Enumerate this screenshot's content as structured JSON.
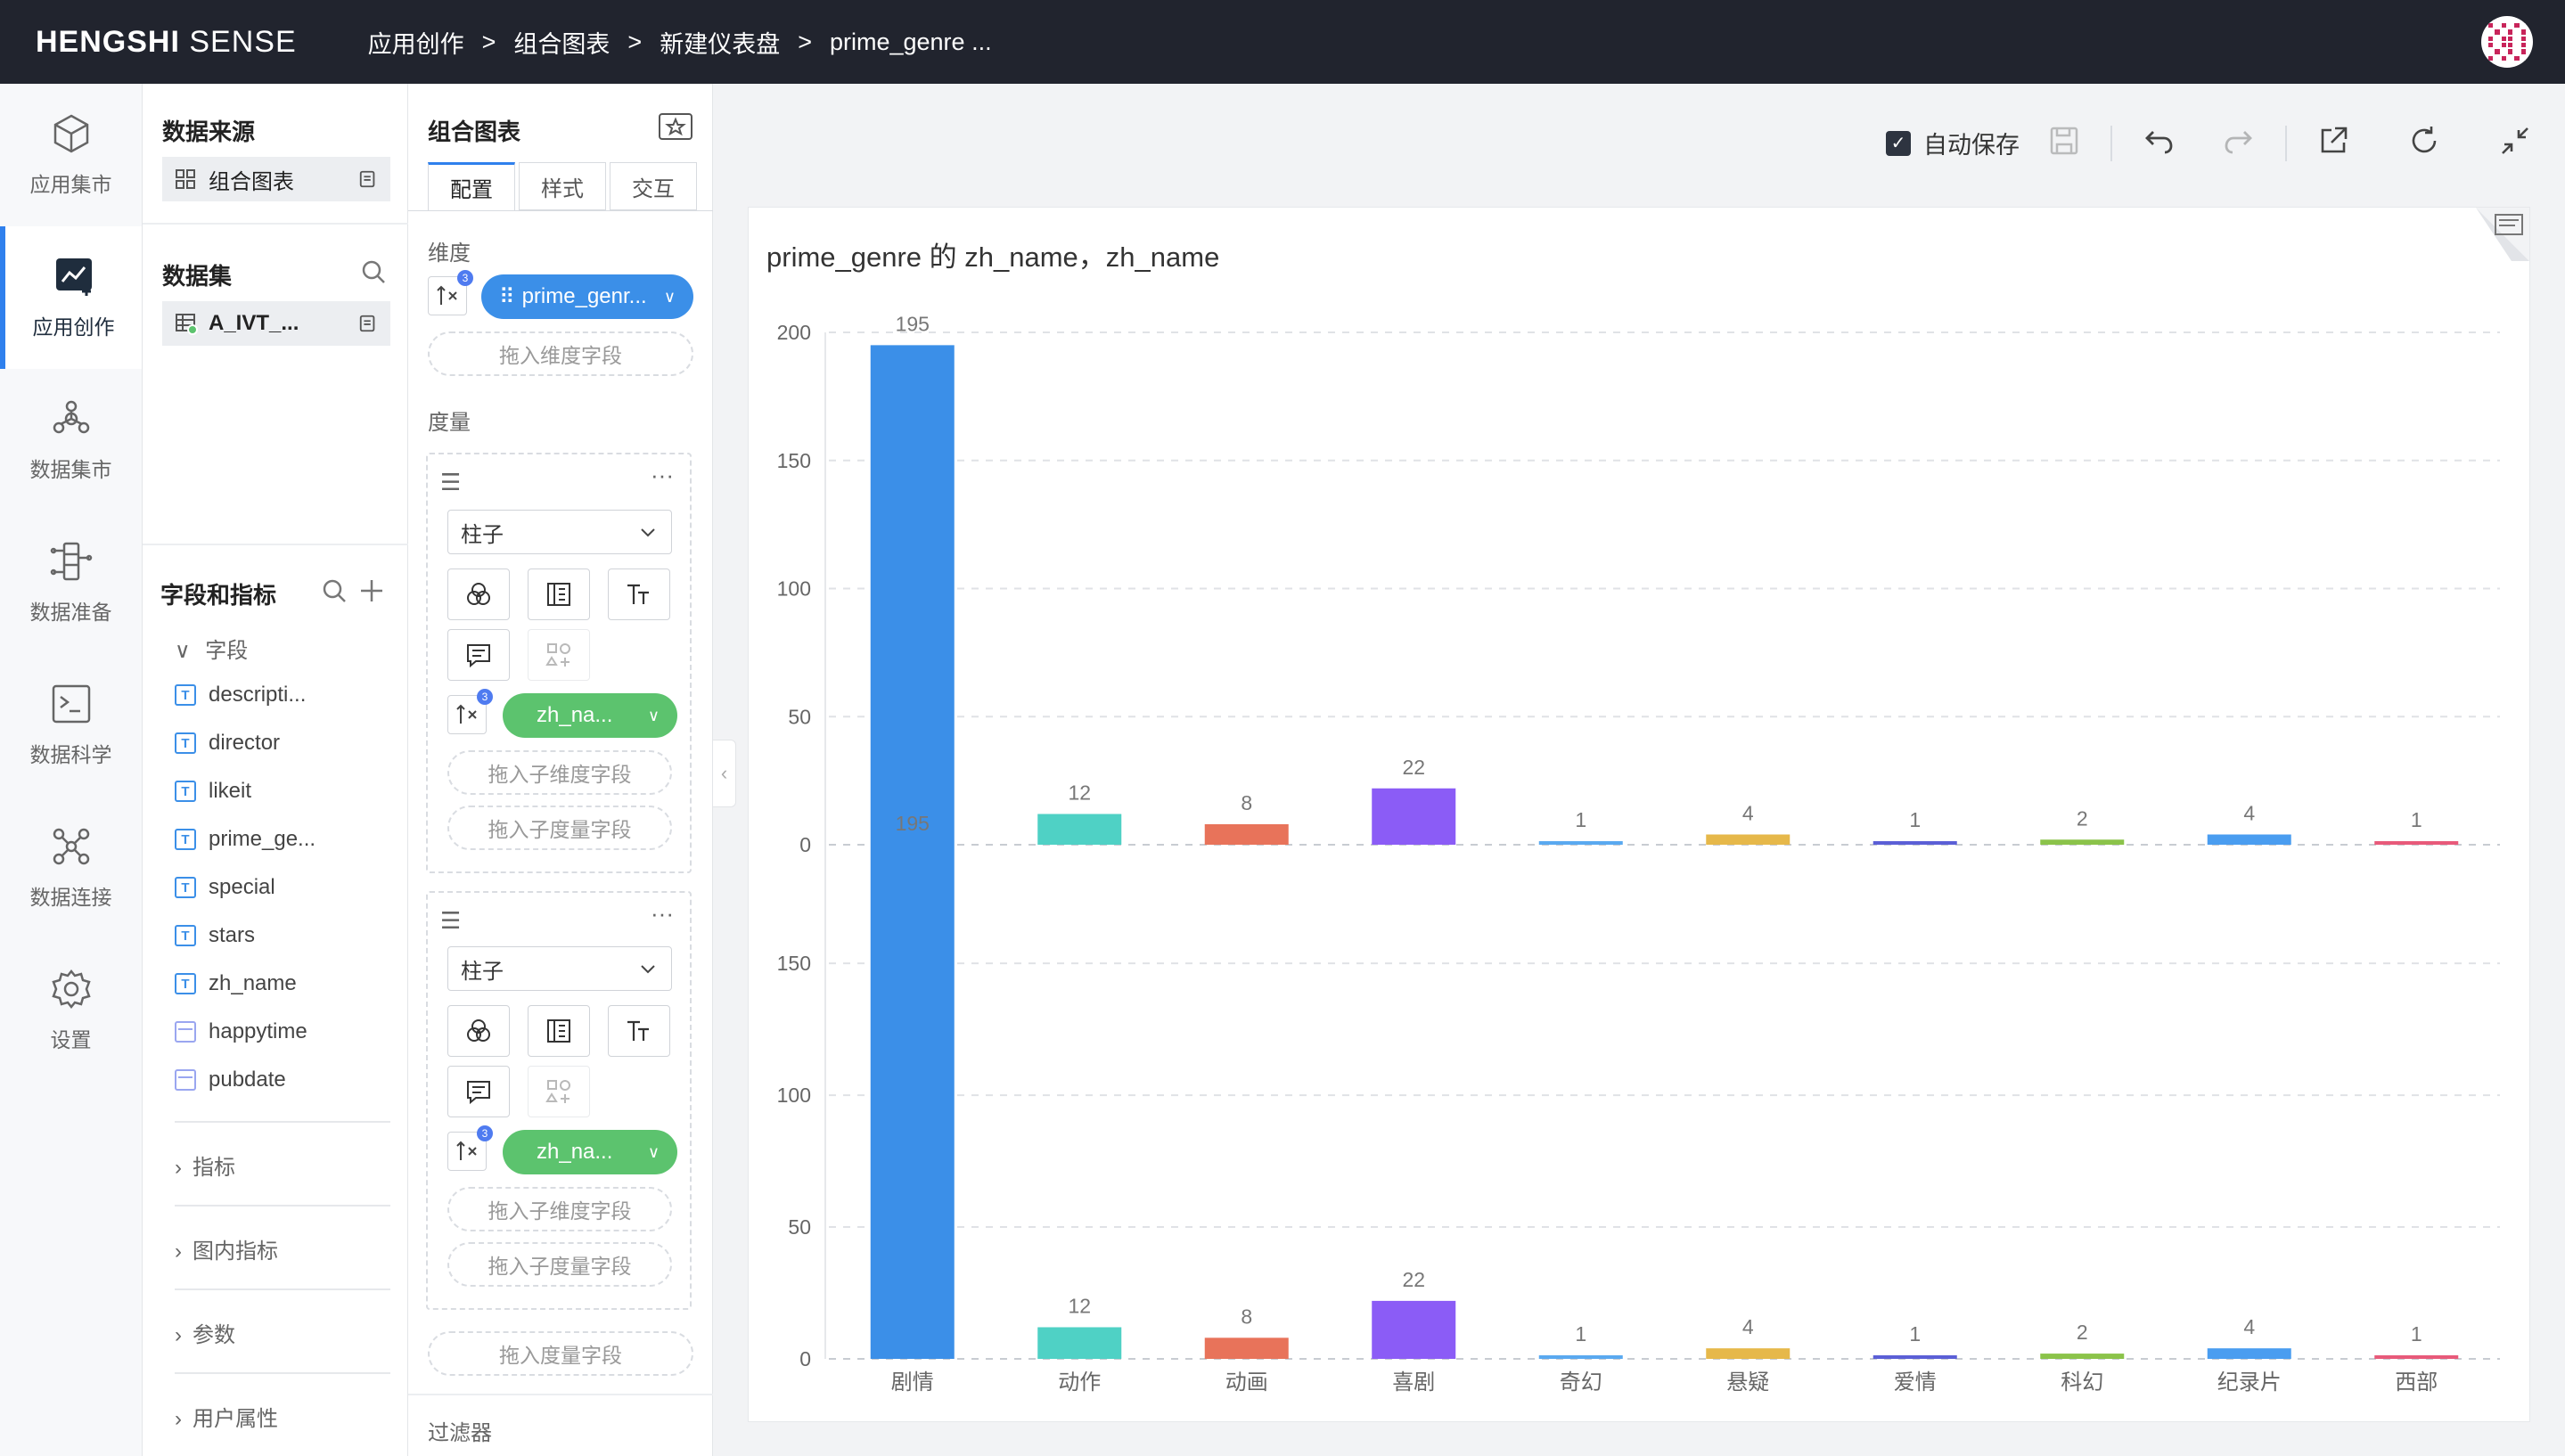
{
  "header": {
    "logo_bold": "HENGSHI",
    "logo_light": " SENSE",
    "breadcrumbs": [
      "应用创作",
      "组合图表",
      "新建仪表盘",
      "prime_genre ..."
    ],
    "separator": ">"
  },
  "leftnav": {
    "items": [
      {
        "label": "应用集市",
        "icon": "cube-icon",
        "active": false
      },
      {
        "label": "应用创作",
        "icon": "chart-create-icon",
        "active": true
      },
      {
        "label": "数据集市",
        "icon": "dataset-market-icon",
        "active": false
      },
      {
        "label": "数据准备",
        "icon": "data-prep-icon",
        "active": false
      },
      {
        "label": "数据科学",
        "icon": "terminal-icon",
        "active": false
      },
      {
        "label": "数据连接",
        "icon": "connect-icon",
        "active": false
      },
      {
        "label": "设置",
        "icon": "gear-icon",
        "active": false
      }
    ]
  },
  "datapanel": {
    "source_title": "数据来源",
    "source_name": "组合图表",
    "dataset_title": "数据集",
    "dataset_name": "A_IVT_...",
    "fields_title": "字段和指标",
    "fields_section": "字段",
    "fields": [
      {
        "name": "descripti...",
        "type": "text"
      },
      {
        "name": "director",
        "type": "text"
      },
      {
        "name": "likeit",
        "type": "text"
      },
      {
        "name": "prime_ge...",
        "type": "text"
      },
      {
        "name": "special",
        "type": "text"
      },
      {
        "name": "stars",
        "type": "text"
      },
      {
        "name": "zh_name",
        "type": "text"
      },
      {
        "name": "happytime",
        "type": "date"
      },
      {
        "name": "pubdate",
        "type": "date"
      }
    ],
    "collapsed_sections": [
      "指标",
      "图内指标",
      "参数",
      "用户属性"
    ]
  },
  "config": {
    "title": "组合图表",
    "tabs": [
      "配置",
      "样式",
      "交互"
    ],
    "dimension_label": "维度",
    "dimension_pill": "prime_genr...",
    "drop_dimension": "拖入维度字段",
    "measure_label": "度量",
    "measures": [
      {
        "chart_type": "柱子",
        "pill": "zh_na...",
        "drop_sub_dim": "拖入子维度字段",
        "drop_sub_measure": "拖入子度量字段"
      },
      {
        "chart_type": "柱子",
        "pill": "zh_na...",
        "drop_sub_dim": "拖入子维度字段",
        "drop_sub_measure": "拖入子度量字段"
      }
    ],
    "drop_measure": "拖入度量字段",
    "filter_label": "过滤器",
    "badge": "3"
  },
  "toolbar": {
    "autosave_label": "自动保存",
    "autosave_checked": true
  },
  "chart_data": {
    "type": "bar",
    "title": "prime_genre 的 zh_name，zh_name",
    "categories": [
      "剧情",
      "动作",
      "动画",
      "喜剧",
      "奇幻",
      "悬疑",
      "爱情",
      "科幻",
      "纪录片",
      "西部"
    ],
    "colors": [
      "#3b8fe8",
      "#4fd1c5",
      "#e8735a",
      "#8b5cf6",
      "#5aa9f0",
      "#e6b84a",
      "#5b5fd6",
      "#8bc34a",
      "#4a9df0",
      "#e85a7a"
    ],
    "panels": [
      {
        "values": [
          195,
          12,
          8,
          22,
          1,
          4,
          1,
          2,
          4,
          1
        ],
        "yticks": [
          0,
          50,
          100,
          150,
          200
        ],
        "ylim": [
          0,
          200
        ]
      },
      {
        "values": [
          195,
          12,
          8,
          22,
          1,
          4,
          1,
          2,
          4,
          1
        ],
        "yticks": [
          0,
          50,
          100,
          150
        ],
        "ylim": [
          0,
          195
        ]
      }
    ],
    "grid": true,
    "legend": "none"
  }
}
